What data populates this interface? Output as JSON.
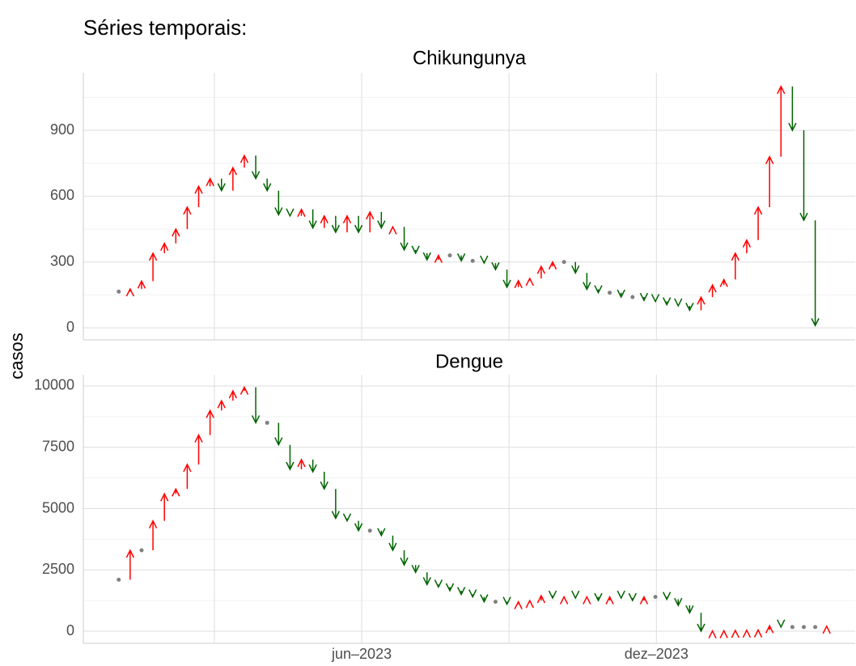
{
  "title": "Séries temporais:",
  "ylabel": "casos",
  "chart_data": [
    {
      "type": "arrow",
      "title": "Chikungunya",
      "categories": [
        null,
        null,
        null,
        null,
        null,
        null,
        null,
        null,
        null,
        null,
        null,
        null,
        null,
        null,
        null,
        null,
        null,
        null,
        null,
        null,
        null,
        null,
        null,
        null,
        null,
        null,
        null,
        null,
        null,
        null,
        null,
        null,
        null,
        null,
        null,
        null,
        null,
        null,
        null,
        null,
        null,
        null,
        null,
        null,
        null,
        null,
        null,
        null,
        null,
        null,
        null,
        null,
        null,
        null,
        null,
        null,
        null,
        null,
        null,
        null,
        null,
        null
      ],
      "values": [
        165,
        177,
        213,
        340,
        385,
        450,
        550,
        645,
        680,
        625,
        730,
        785,
        680,
        625,
        515,
        510,
        540,
        455,
        510,
        435,
        510,
        435,
        528,
        455,
        460,
        355,
        340,
        310,
        330,
        330,
        305,
        305,
        295,
        265,
        185,
        215,
        225,
        280,
        300,
        300,
        250,
        175,
        160,
        160,
        140,
        140,
        125,
        120,
        105,
        100,
        80,
        140,
        195,
        220,
        340,
        400,
        550,
        780,
        1100,
        900,
        490,
        10
      ],
      "up_color": "#ff0000",
      "down_color": "#006400",
      "flat_color": "#808080",
      "xlim": [
        -3.1,
        64.5
      ],
      "ylim": [
        -55,
        1162
      ],
      "yticks": [
        0,
        300,
        600,
        900
      ],
      "grid": true
    },
    {
      "type": "arrow",
      "title": "Dengue",
      "categories": [
        null,
        null,
        null,
        null,
        null,
        null,
        null,
        null,
        null,
        null,
        null,
        null,
        null,
        null,
        null,
        null,
        null,
        null,
        null,
        null,
        null,
        null,
        null,
        null,
        null,
        null,
        null,
        null,
        null,
        null,
        null,
        null,
        null,
        null,
        null,
        null,
        null,
        null,
        null,
        null,
        null,
        null,
        null,
        null,
        null,
        null,
        null,
        null,
        null,
        null,
        null,
        null,
        null,
        null,
        null,
        null,
        null,
        null,
        null,
        null,
        null,
        null,
        null
      ],
      "values": [
        2100,
        3300,
        3300,
        4500,
        5600,
        5800,
        6800,
        8000,
        9000,
        9400,
        9800,
        9950,
        8500,
        8500,
        7600,
        6600,
        7000,
        6500,
        5800,
        4600,
        4500,
        4100,
        4100,
        3900,
        3300,
        2700,
        2400,
        1900,
        1800,
        1650,
        1500,
        1400,
        1200,
        1200,
        1100,
        1200,
        1250,
        1450,
        1350,
        1400,
        1350,
        1400,
        1250,
        1400,
        1350,
        1250,
        1400,
        1400,
        1300,
        1050,
        750,
        0,
        10,
        20,
        30,
        40,
        50,
        220,
        170,
        170,
        170,
        170,
        200
      ],
      "up_color": "#ff0000",
      "down_color": "#006400",
      "flat_color": "#808080",
      "xlim": [
        -3.1,
        64.5
      ],
      "ylim": [
        -495,
        10462
      ],
      "yticks": [
        0,
        2500,
        5000,
        7500,
        10000
      ],
      "grid": true,
      "xticks": [
        {
          "value": 21.28,
          "label": "jun–2023"
        },
        {
          "value": 47.09,
          "label": "dez–2023"
        }
      ]
    }
  ]
}
